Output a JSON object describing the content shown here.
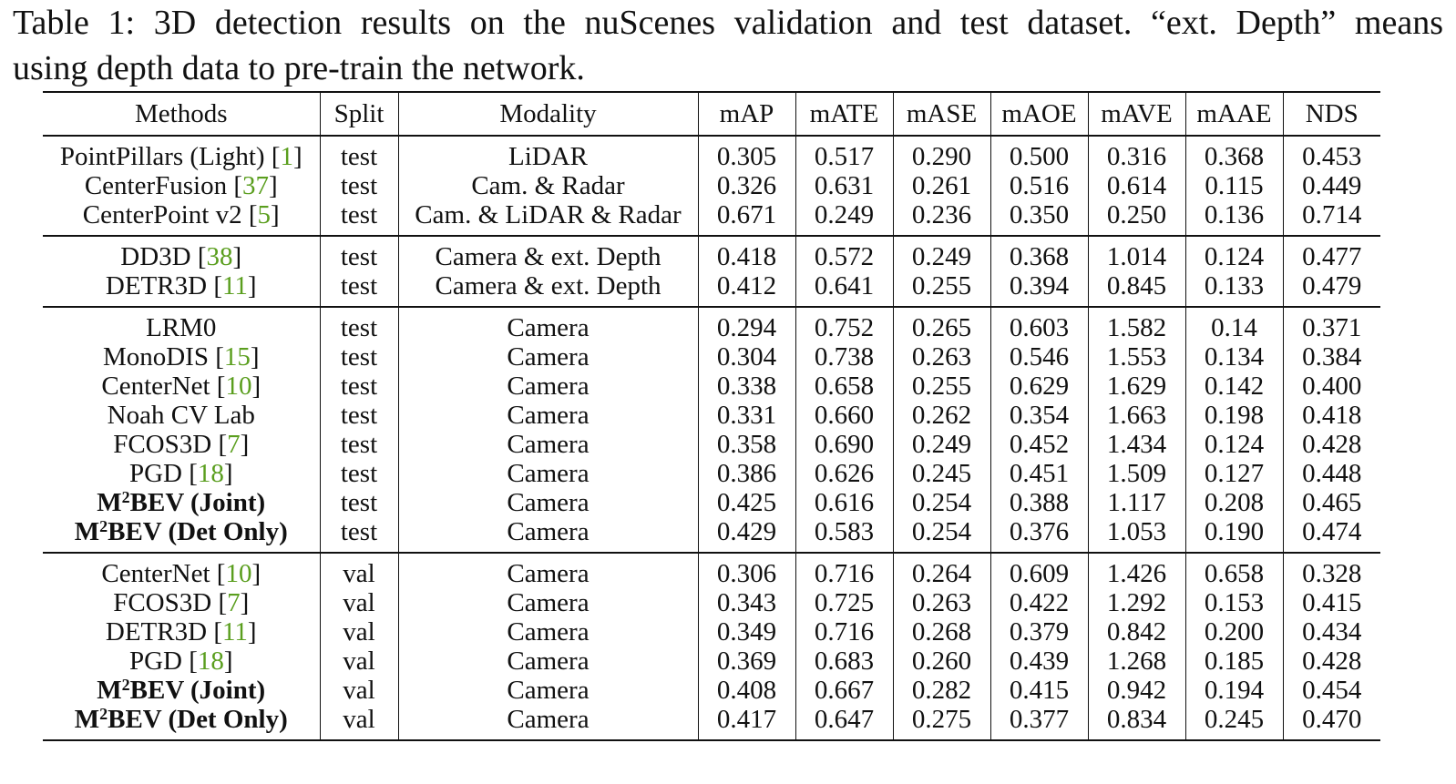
{
  "caption": {
    "line1": "Table 1: 3D detection results on the nuScenes validation and test dataset. “ext. Depth” means",
    "line2": "using depth data to pre-train the network."
  },
  "table": {
    "headers": [
      "Methods",
      "Split",
      "Modality",
      "mAP",
      "mATE",
      "mASE",
      "mAOE",
      "mAVE",
      "mAAE",
      "NDS"
    ],
    "groups": [
      {
        "rows": [
          {
            "method": "PointPillars (Light)",
            "ref": "1",
            "split": "test",
            "modality": "LiDAR",
            "values": [
              "0.305",
              "0.517",
              "0.290",
              "0.500",
              "0.316",
              "0.368",
              "0.453"
            ],
            "bold": []
          },
          {
            "method": "CenterFusion",
            "ref": "37",
            "split": "test",
            "modality": "Cam. & Radar",
            "values": [
              "0.326",
              "0.631",
              "0.261",
              "0.516",
              "0.614",
              "0.115",
              "0.449"
            ],
            "bold": []
          },
          {
            "method": "CenterPoint v2",
            "ref": "5",
            "split": "test",
            "modality": "Cam. & LiDAR & Radar",
            "values": [
              "0.671",
              "0.249",
              "0.236",
              "0.350",
              "0.250",
              "0.136",
              "0.714"
            ],
            "bold": [
              0,
              6
            ]
          }
        ]
      },
      {
        "rows": [
          {
            "method": "DD3D",
            "ref": "38",
            "split": "test",
            "modality": "Camera & ext. Depth",
            "values": [
              "0.418",
              "0.572",
              "0.249",
              "0.368",
              "1.014",
              "0.124",
              "0.477"
            ],
            "bold": [
              0
            ]
          },
          {
            "method": "DETR3D",
            "ref": "11",
            "split": "test",
            "modality": "Camera & ext. Depth",
            "values": [
              "0.412",
              "0.641",
              "0.255",
              "0.394",
              "0.845",
              "0.133",
              "0.479"
            ],
            "bold": [
              6
            ]
          }
        ]
      },
      {
        "rows": [
          {
            "method": "LRM0",
            "ref": "",
            "split": "test",
            "modality": "Camera",
            "values": [
              "0.294",
              "0.752",
              "0.265",
              "0.603",
              "1.582",
              "0.14",
              "0.371"
            ],
            "bold": []
          },
          {
            "method": "MonoDIS",
            "ref": "15",
            "split": "test",
            "modality": "Camera",
            "values": [
              "0.304",
              "0.738",
              "0.263",
              "0.546",
              "1.553",
              "0.134",
              "0.384"
            ],
            "bold": []
          },
          {
            "method": "CenterNet",
            "ref": "10",
            "split": "test",
            "modality": "Camera",
            "values": [
              "0.338",
              "0.658",
              "0.255",
              "0.629",
              "1.629",
              "0.142",
              "0.400"
            ],
            "bold": []
          },
          {
            "method": "Noah CV Lab",
            "ref": "",
            "split": "test",
            "modality": "Camera",
            "values": [
              "0.331",
              "0.660",
              "0.262",
              "0.354",
              "1.663",
              "0.198",
              "0.418"
            ],
            "bold": []
          },
          {
            "method": "FCOS3D",
            "ref": "7",
            "split": "test",
            "modality": "Camera",
            "values": [
              "0.358",
              "0.690",
              "0.249",
              "0.452",
              "1.434",
              "0.124",
              "0.428"
            ],
            "bold": []
          },
          {
            "method": "PGD",
            "ref": "18",
            "split": "test",
            "modality": "Camera",
            "values": [
              "0.386",
              "0.626",
              "0.245",
              "0.451",
              "1.509",
              "0.127",
              "0.448"
            ],
            "bold": []
          },
          {
            "method": "BEV (Joint)",
            "prefix": "M",
            "sup": "2",
            "ours": true,
            "split": "test",
            "modality": "Camera",
            "values": [
              "0.425",
              "0.616",
              "0.254",
              "0.388",
              "1.117",
              "0.208",
              "0.465"
            ],
            "bold": []
          },
          {
            "method": "BEV (Det Only)",
            "prefix": "M",
            "sup": "2",
            "ours": true,
            "split": "test",
            "modality": "Camera",
            "values": [
              "0.429",
              "0.583",
              "0.254",
              "0.376",
              "1.053",
              "0.190",
              "0.474"
            ],
            "bold": [
              0,
              6
            ]
          }
        ]
      },
      {
        "rows": [
          {
            "method": "CenterNet",
            "ref": "10",
            "split": "val",
            "modality": "Camera",
            "values": [
              "0.306",
              "0.716",
              "0.264",
              "0.609",
              "1.426",
              "0.658",
              "0.328"
            ],
            "bold": []
          },
          {
            "method": "FCOS3D",
            "ref": "7",
            "split": "val",
            "modality": "Camera",
            "values": [
              "0.343",
              "0.725",
              "0.263",
              "0.422",
              "1.292",
              "0.153",
              "0.415"
            ],
            "bold": []
          },
          {
            "method": "DETR3D",
            "ref": "11",
            "split": "val",
            "modality": "Camera",
            "values": [
              "0.349",
              "0.716",
              "0.268",
              "0.379",
              "0.842",
              "0.200",
              "0.434"
            ],
            "bold": []
          },
          {
            "method": "PGD",
            "ref": "18",
            "split": "val",
            "modality": "Camera",
            "values": [
              "0.369",
              "0.683",
              "0.260",
              "0.439",
              "1.268",
              "0.185",
              "0.428"
            ],
            "bold": []
          },
          {
            "method": "BEV (Joint)",
            "prefix": "M",
            "sup": "2",
            "ours": true,
            "split": "val",
            "modality": "Camera",
            "values": [
              "0.408",
              "0.667",
              "0.282",
              "0.415",
              "0.942",
              "0.194",
              "0.454"
            ],
            "bold": []
          },
          {
            "method": "BEV (Det Only)",
            "prefix": "M",
            "sup": "2",
            "ours": true,
            "split": "val",
            "modality": "Camera",
            "values": [
              "0.417",
              "0.647",
              "0.275",
              "0.377",
              "0.834",
              "0.245",
              "0.470"
            ],
            "bold": [
              0,
              6
            ]
          }
        ]
      }
    ]
  }
}
